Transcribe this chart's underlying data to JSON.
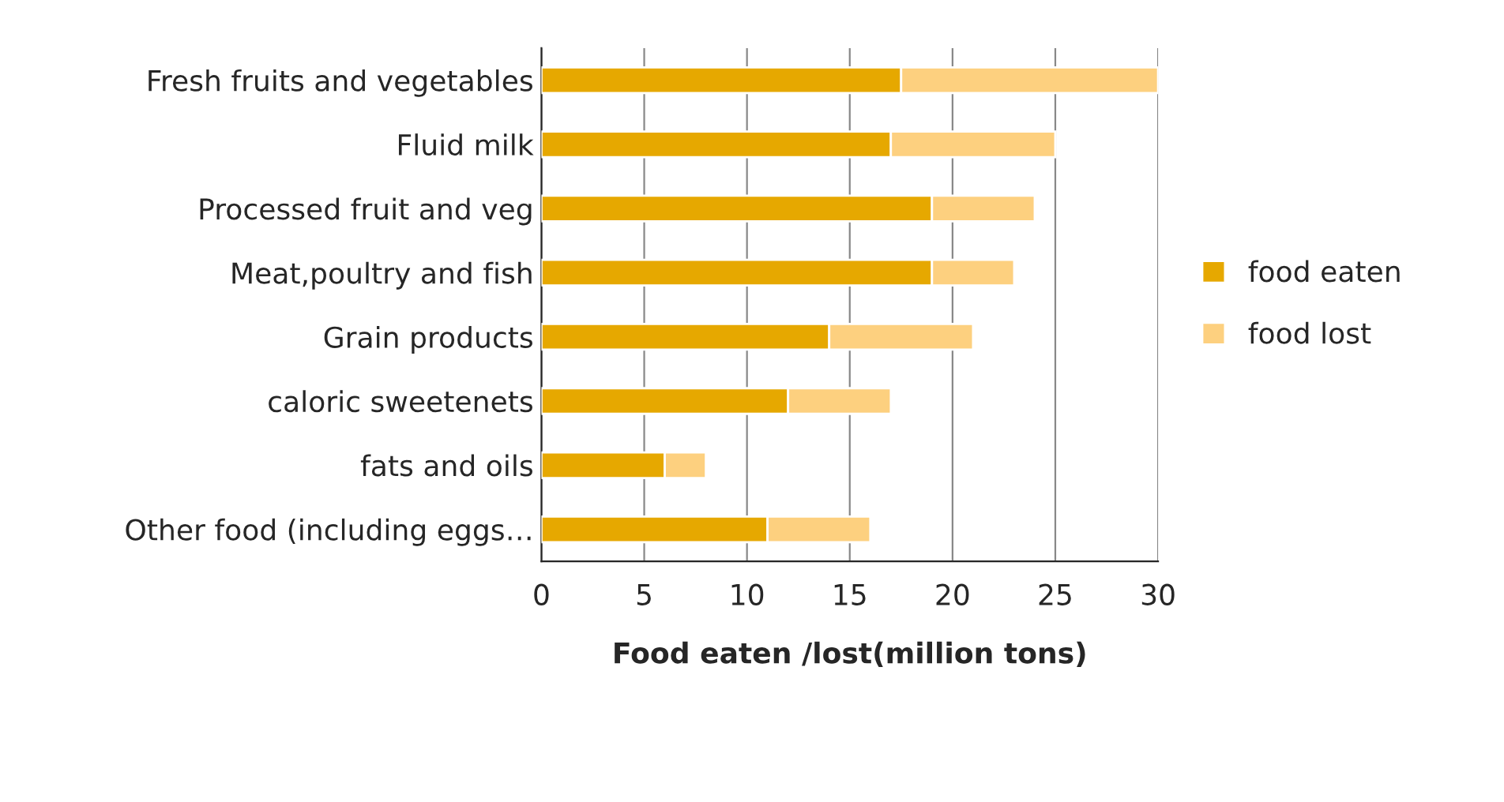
{
  "chart_data": {
    "type": "bar",
    "orientation": "horizontal",
    "stacked": true,
    "xlabel": "Food eaten /lost(million tons)",
    "categories": [
      "Fresh fruits and vegetables",
      "Fluid milk",
      "Processed fruit and veg",
      "Meat,poultry and fish",
      "Grain products",
      "caloric sweetenets",
      "fats and oils",
      "Other food (including eggs…"
    ],
    "series": [
      {
        "name": "food eaten",
        "color": "#e6a800",
        "values": [
          17.5,
          17,
          19,
          19,
          14,
          12,
          6,
          11
        ]
      },
      {
        "name": "food lost",
        "color": "#fdd07f",
        "values": [
          12.5,
          8,
          5,
          4,
          7,
          5,
          2,
          5
        ]
      }
    ],
    "xlim": [
      0,
      30
    ],
    "xticks": [
      0,
      5,
      10,
      15,
      20,
      25,
      30
    ],
    "grid": "x",
    "legend": "right"
  }
}
